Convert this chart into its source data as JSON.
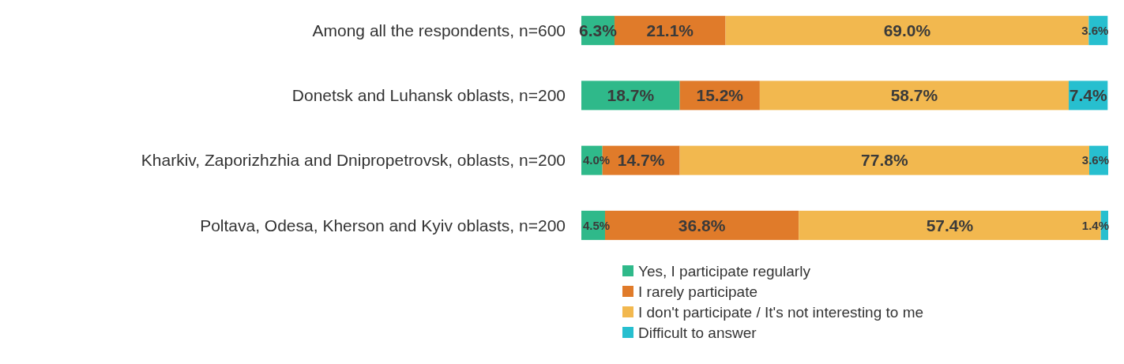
{
  "chart_data": {
    "type": "bar",
    "orientation": "horizontal",
    "stacked": true,
    "legend": "bottom",
    "categories": [
      "Among all the respondents, n=600",
      "Donetsk and Luhansk oblasts, n=200",
      "Kharkiv, Zaporizhzhia and Dnipropetrovsk, oblasts, n=200",
      "Poltava, Odesa, Kherson and Kyiv oblasts, n=200"
    ],
    "series": [
      {
        "name": "Yes, I participate regularly",
        "color": "#2fb98a",
        "values": [
          6.3,
          18.7,
          4.0,
          4.5
        ],
        "value_labels": [
          "6.3%",
          "18.7%",
          "4.0%",
          "4.5%"
        ]
      },
      {
        "name": "I rarely participate",
        "color": "#e07b2a",
        "values": [
          21.1,
          15.2,
          14.7,
          36.8
        ],
        "value_labels": [
          "21.1%",
          "15.2%",
          "14.7%",
          "36.8%"
        ]
      },
      {
        "name": "I don't participate / It's not interesting to me",
        "color": "#f2b84f",
        "values": [
          69.0,
          58.7,
          77.8,
          57.4
        ],
        "value_labels": [
          "69.0%",
          "58.7%",
          "77.8%",
          "57.4%"
        ]
      },
      {
        "name": "Difficult to answer",
        "color": "#27bfcf",
        "values": [
          3.6,
          7.4,
          3.6,
          1.4
        ],
        "value_labels": [
          "3.6%",
          "7.4%",
          "3.6%",
          "1.4%"
        ]
      }
    ]
  }
}
